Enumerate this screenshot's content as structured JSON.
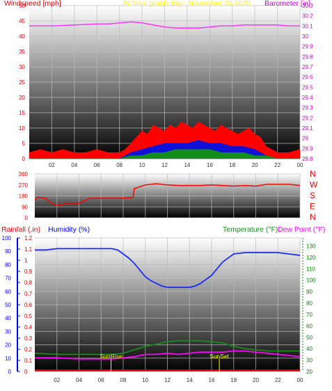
{
  "colors": {
    "wind": "#ff0000",
    "gust_mid": "#1010d8",
    "gust_low": "#0f8f1a",
    "barometer": "#ff33ff",
    "title": "#ffff00",
    "wind_label": "#dd0000",
    "baro_label": "#cc00cc",
    "humidity": "#1a2aff",
    "temperature": "#1a8a1a",
    "dewpoint": "#ff00ff",
    "rainfall": "#ee0000",
    "sun": "#ffff00",
    "axis_blue": "#0000ff",
    "axis_green": "#008800"
  },
  "header": {
    "windspeed_label": "Windspeed [mph]",
    "title": "24 hour graph day - November 15 2025",
    "barometer_label": "Barometer [in]"
  },
  "bottom_header": {
    "rainfall_label": "Rainfall (.in)",
    "humidity_label": "Humidity (%)",
    "temperature_label": "Temperature (°F)",
    "dewpoint_label": "Dew Point (°F)"
  },
  "chart_data": [
    {
      "type": "area",
      "id": "wind",
      "xlabel": "",
      "ylabel": "Windspeed [mph]",
      "ylabel_right": "Barometer [in]",
      "x_ticks": [
        "02",
        "04",
        "06",
        "08",
        "10",
        "12",
        "14",
        "16",
        "18",
        "20",
        "22",
        "00"
      ],
      "y_left_ticks": [
        "0",
        "5",
        "10",
        "15",
        "20",
        "25",
        "30",
        "35",
        "40",
        "45",
        "50"
      ],
      "y_right_ticks": [
        "28.8",
        "28.9",
        "29",
        "29.1",
        "29.2",
        "29.3",
        "29.4",
        "29.5",
        "29.6",
        "29.7",
        "29.8",
        "29.9",
        "30",
        "30.1",
        "30.2",
        "30.3"
      ],
      "ylim": [
        0,
        50
      ],
      "ylim_right": [
        28.8,
        30.3
      ],
      "grid": true,
      "series": [
        {
          "name": "Windspeed [mph]",
          "role": "max",
          "x": [
            0,
            1,
            2,
            3,
            4,
            5,
            6,
            7,
            8,
            8.5,
            9,
            9.5,
            10,
            10.5,
            11,
            11.5,
            12,
            12.5,
            13,
            13.5,
            14,
            14.5,
            15,
            15.5,
            16,
            16.5,
            17,
            17.5,
            18,
            18.5,
            19,
            19.5,
            20,
            20.5,
            21,
            22,
            23,
            24
          ],
          "values": [
            2,
            3,
            2,
            3,
            2,
            2,
            3,
            2,
            2,
            3,
            5,
            7,
            9,
            8,
            11,
            10,
            9,
            11,
            10,
            12,
            11,
            10,
            12,
            11,
            10,
            9,
            11,
            10,
            9,
            8,
            9,
            10,
            8,
            7,
            4,
            2,
            2,
            3
          ]
        },
        {
          "role": "mid",
          "x": [
            0,
            8,
            9,
            10,
            11,
            12,
            13,
            14,
            15,
            16,
            17,
            18,
            19,
            20,
            21,
            22,
            24
          ],
          "values": [
            0,
            0,
            2,
            3,
            4,
            5,
            5,
            5,
            6,
            5,
            5,
            4,
            4,
            3,
            1,
            0,
            0
          ]
        },
        {
          "role": "low",
          "x": [
            0,
            8,
            9,
            10,
            11,
            12,
            13,
            14,
            15,
            16,
            17,
            18,
            19,
            20,
            21,
            22,
            24
          ],
          "values": [
            0,
            0,
            1,
            1,
            2,
            2,
            3,
            3,
            3,
            3,
            2,
            2,
            2,
            1,
            1,
            0,
            0
          ]
        },
        {
          "name": "Barometer [in]",
          "axis": "right",
          "x": [
            0,
            2,
            4,
            6,
            7,
            8,
            9,
            10,
            11,
            12,
            13,
            14,
            15,
            16,
            17,
            18,
            19,
            20,
            21,
            22,
            23,
            24
          ],
          "values": [
            30.1,
            30.1,
            30.11,
            30.12,
            30.12,
            30.13,
            30.14,
            30.13,
            30.11,
            30.09,
            30.08,
            30.08,
            30.08,
            30.09,
            30.1,
            30.1,
            30.11,
            30.11,
            30.11,
            30.11,
            30.1,
            30.1
          ]
        }
      ]
    },
    {
      "type": "line",
      "id": "direction",
      "x_ticks": [
        "02",
        "04",
        "06",
        "08",
        "10",
        "12",
        "14",
        "16",
        "18",
        "20",
        "22",
        "00"
      ],
      "y_left_ticks": [
        "0",
        "90",
        "180",
        "270",
        "360"
      ],
      "y_right_ticks": [
        "N",
        "E",
        "S",
        "W",
        "N"
      ],
      "ylim": [
        0,
        360
      ],
      "grid": true,
      "series": [
        {
          "name": "Wind Direction",
          "x": [
            0,
            0.3,
            1,
            1.5,
            2,
            3,
            4,
            5,
            6,
            7,
            8,
            8.9,
            9,
            10,
            11,
            12,
            13,
            14,
            15,
            16,
            17,
            18,
            19,
            20,
            21,
            22,
            23,
            24
          ],
          "values": [
            150,
            170,
            160,
            120,
            100,
            120,
            120,
            160,
            160,
            160,
            160,
            170,
            240,
            270,
            280,
            270,
            265,
            265,
            265,
            270,
            265,
            260,
            265,
            260,
            275,
            275,
            275,
            265
          ]
        }
      ]
    },
    {
      "type": "line",
      "id": "humidity_temp",
      "x_ticks": [
        "02",
        "04",
        "06",
        "08",
        "10",
        "12",
        "14",
        "16",
        "18",
        "20",
        "22",
        "00"
      ],
      "y_left_ticks": [
        "0",
        "10",
        "20",
        "30",
        "40",
        "50",
        "60",
        "70",
        "80",
        "90",
        "100"
      ],
      "y_mid_ticks": [
        "0",
        "0.1",
        "0.2",
        "0.3",
        "0.4",
        "0.5",
        "0.6",
        "0.7",
        "0.8",
        "0.9",
        "1",
        "1.1",
        "1.2"
      ],
      "y_right_ticks": [
        "20",
        "30",
        "40",
        "50",
        "60",
        "70",
        "80",
        "90",
        "100",
        "110",
        "120",
        "130"
      ],
      "ylim": [
        0,
        100
      ],
      "ylim_right": [
        20,
        137
      ],
      "grid": true,
      "annotations": [
        {
          "text": "SunRise",
          "x": 6.9
        },
        {
          "text": "SunSet",
          "x": 16.7
        }
      ],
      "series": [
        {
          "name": "Humidity (%)",
          "axis": "left",
          "x": [
            0,
            1,
            2,
            3,
            4,
            5,
            6,
            7,
            7.5,
            8,
            8.5,
            9,
            9.5,
            10,
            10.5,
            11,
            11.5,
            12,
            12.5,
            13,
            13.5,
            14,
            14.5,
            15,
            15.5,
            16,
            16.5,
            17,
            17.5,
            18,
            19,
            20,
            21,
            22,
            23,
            24
          ],
          "values": [
            91,
            91,
            92,
            92,
            92,
            92,
            92,
            92,
            91,
            88,
            85,
            81,
            76,
            71,
            68,
            66,
            64,
            63,
            63,
            63,
            63,
            63,
            64,
            66,
            69,
            72,
            77,
            82,
            85,
            88,
            89,
            89,
            89,
            89,
            88,
            87
          ]
        },
        {
          "name": "Temperature (°F)",
          "axis": "right",
          "x": [
            0,
            2,
            4,
            6,
            7,
            8,
            9,
            10,
            11,
            12,
            13,
            14,
            15,
            16,
            17,
            18,
            19,
            20,
            21,
            22,
            23,
            24
          ],
          "values": [
            36,
            35,
            35,
            35,
            35,
            36,
            39,
            42,
            44,
            46,
            47,
            47,
            47,
            46,
            45,
            42,
            40,
            39,
            38,
            38,
            38,
            38
          ]
        },
        {
          "name": "Dew Point (°F)",
          "axis": "right",
          "x": [
            0,
            2,
            4,
            6,
            7,
            8,
            9,
            10,
            11,
            12,
            13,
            14,
            15,
            16,
            17,
            18,
            19,
            20,
            21,
            22,
            23,
            24
          ],
          "values": [
            32,
            32,
            31,
            31,
            31,
            32,
            33,
            35,
            35,
            36,
            35,
            36,
            37,
            37,
            37,
            38,
            38,
            37,
            36,
            35,
            34,
            33
          ]
        },
        {
          "name": "Rainfall (.in)",
          "axis": "mid",
          "x": [
            0,
            24
          ],
          "values": [
            0.01,
            0.01
          ]
        }
      ]
    }
  ]
}
